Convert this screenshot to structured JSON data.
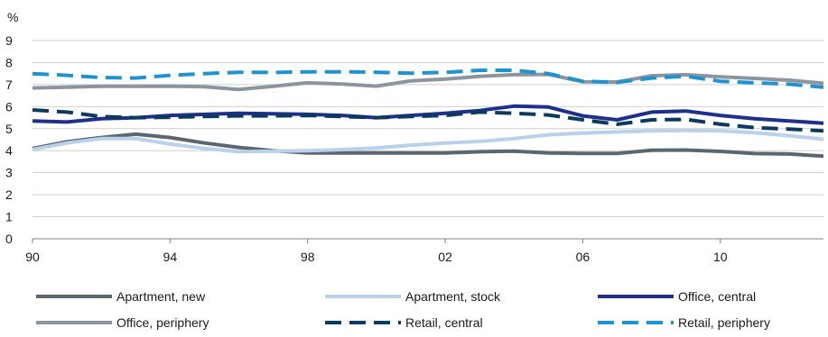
{
  "chart_data": {
    "type": "line",
    "unit_label": "%",
    "title": "",
    "xlabel": "",
    "ylabel": "%",
    "ylim": [
      0,
      9
    ],
    "y_ticks": [
      "0",
      "1",
      "2",
      "3",
      "4",
      "5",
      "6",
      "7",
      "8",
      "9"
    ],
    "xlim": [
      1990,
      2013
    ],
    "x_ticks": [
      {
        "x": 1990,
        "label": "90"
      },
      {
        "x": 1994,
        "label": "94"
      },
      {
        "x": 1998,
        "label": "98"
      },
      {
        "x": 2002,
        "label": "02"
      },
      {
        "x": 2006,
        "label": "06"
      },
      {
        "x": 2010,
        "label": "10"
      }
    ],
    "grid": "horizontal",
    "legend_position": "bottom",
    "x": [
      1990,
      1991,
      1992,
      1993,
      1994,
      1995,
      1996,
      1997,
      1998,
      1999,
      2000,
      2001,
      2002,
      2003,
      2004,
      2005,
      2006,
      2007,
      2008,
      2009,
      2010,
      2011,
      2012,
      2013
    ],
    "series": [
      {
        "name": "Apartment, new",
        "color": "#5b6770",
        "dash": "solid",
        "values": [
          4.1,
          4.4,
          4.6,
          4.75,
          4.6,
          4.35,
          4.15,
          4.0,
          3.9,
          3.9,
          3.9,
          3.9,
          3.9,
          3.95,
          3.98,
          3.9,
          3.88,
          3.88,
          4.02,
          4.03,
          3.97,
          3.87,
          3.85,
          3.75
        ]
      },
      {
        "name": "Apartment, stock",
        "color": "#b9d1ea",
        "dash": "solid",
        "values": [
          4.05,
          4.35,
          4.55,
          4.55,
          4.3,
          4.1,
          3.95,
          3.98,
          4.0,
          4.05,
          4.12,
          4.25,
          4.35,
          4.42,
          4.55,
          4.72,
          4.8,
          4.85,
          4.9,
          4.92,
          4.9,
          4.82,
          4.68,
          4.52
        ]
      },
      {
        "name": "Office, central",
        "color": "#1f2f8c",
        "dash": "solid",
        "values": [
          5.35,
          5.3,
          5.45,
          5.5,
          5.6,
          5.65,
          5.7,
          5.68,
          5.65,
          5.6,
          5.5,
          5.6,
          5.7,
          5.82,
          6.02,
          5.98,
          5.58,
          5.4,
          5.75,
          5.8,
          5.6,
          5.45,
          5.35,
          5.25
        ]
      },
      {
        "name": "Office, periphery",
        "color": "#8c959e",
        "dash": "solid",
        "values": [
          6.85,
          6.88,
          6.92,
          6.92,
          6.93,
          6.9,
          6.78,
          6.92,
          7.08,
          7.03,
          6.93,
          7.17,
          7.25,
          7.37,
          7.45,
          7.46,
          7.13,
          7.12,
          7.4,
          7.45,
          7.35,
          7.28,
          7.2,
          7.06
        ]
      },
      {
        "name": "Retail, central",
        "color": "#0b3a5f",
        "dash": "dashed",
        "values": [
          5.85,
          5.75,
          5.55,
          5.5,
          5.52,
          5.55,
          5.58,
          5.58,
          5.6,
          5.55,
          5.5,
          5.55,
          5.6,
          5.75,
          5.7,
          5.62,
          5.4,
          5.2,
          5.4,
          5.42,
          5.2,
          5.05,
          4.98,
          4.9
        ]
      },
      {
        "name": "Retail, periphery",
        "color": "#1e93cf",
        "dash": "dashed",
        "values": [
          7.5,
          7.42,
          7.32,
          7.3,
          7.42,
          7.5,
          7.56,
          7.55,
          7.58,
          7.58,
          7.56,
          7.52,
          7.55,
          7.65,
          7.65,
          7.5,
          7.15,
          7.1,
          7.3,
          7.38,
          7.15,
          7.08,
          7.02,
          6.88
        ]
      }
    ]
  }
}
